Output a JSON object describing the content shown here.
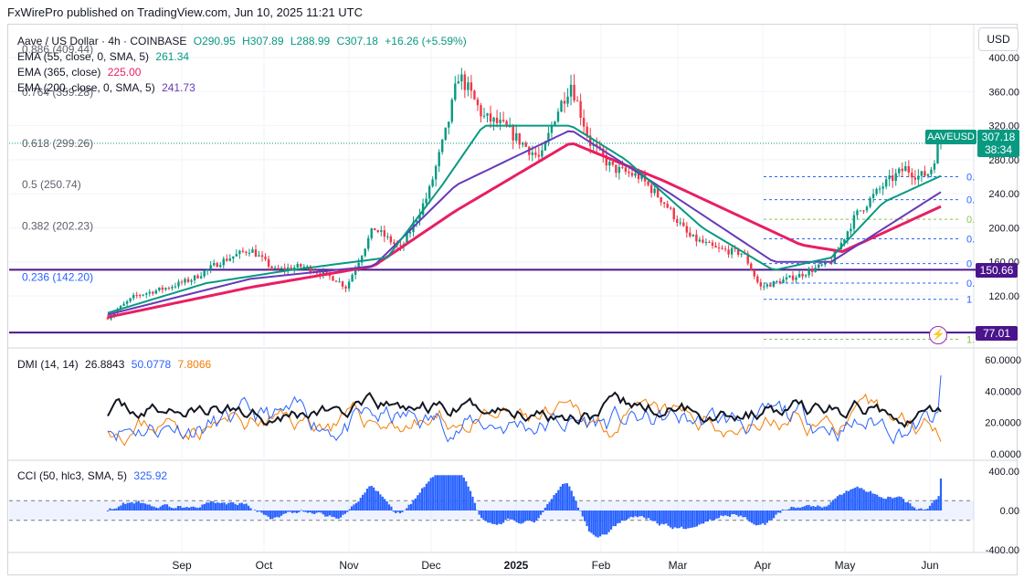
{
  "publisher": "FxWirePro published on TradingView.com, Jun 10, 2025 11:21 UTC",
  "currency_button": "USD",
  "symbol": {
    "name": "Aave / US Dollar · 4h · COINBASE",
    "open": "O290.95",
    "high": "H307.89",
    "low": "L288.99",
    "close": "C307.18",
    "change": "+16.26 (+5.59%)"
  },
  "indicators": {
    "ema55": {
      "label": "EMA (55, close, 0, SMA, 5)",
      "value": "261.34",
      "color": "#089981"
    },
    "ema365": {
      "label": "EMA (365, close)",
      "value": "225.00",
      "color": "#e91e63"
    },
    "ema200": {
      "label": "EMA (200, close, 0, SMA, 5)",
      "value": "241.73",
      "color": "#673ab7"
    },
    "dmi": {
      "label": "DMI (14, 14)",
      "adx": "26.8843",
      "plus": "50.0778",
      "minus": "7.8066"
    },
    "cci": {
      "label": "CCI (50, hlc3, SMA, 5)",
      "value": "325.92"
    }
  },
  "badges": {
    "symbol_tag": "AAVEUSD",
    "last_price": "307.18",
    "countdown": "38:34",
    "support_1": "150.66",
    "support_2": "77.01"
  },
  "fib_left": [
    {
      "label": "0.886 (409.44)",
      "value": 409.44
    },
    {
      "label": "0.764 (359.28)",
      "value": 359.28
    },
    {
      "label": "0.618 (299.26)",
      "value": 299.26
    },
    {
      "label": "0.5 (250.74)",
      "value": 250.74
    },
    {
      "label": "0.382 (202.23)",
      "value": 202.23
    },
    {
      "label": "0.236 (142.20)",
      "value": 142.2
    }
  ],
  "fib_right": [
    {
      "label": "0.",
      "value": 260
    },
    {
      "label": "0.",
      "value": 233
    },
    {
      "label": "0.",
      "value": 210
    },
    {
      "label": "0.",
      "value": 187
    },
    {
      "label": "0",
      "value": 158
    },
    {
      "label": "0.",
      "value": 135
    },
    {
      "label": "1",
      "value": 116
    },
    {
      "label": "1.",
      "value": 69
    }
  ],
  "colors": {
    "up": "#089981",
    "down": "#f23645",
    "ema55": "#089981",
    "ema200": "#673ab7",
    "ema365": "#e91e63",
    "hline": "#4a148c",
    "adx": "#131722",
    "plus_di": "#2962ff",
    "minus_di": "#f57c00",
    "cci": "#2962ff"
  },
  "chart_data": [
    {
      "type": "candlestick",
      "title": "Aave / US Dollar · 4h · COINBASE",
      "x_labels": [
        "Sep",
        "Oct",
        "Nov",
        "Dec",
        "2025",
        "Feb",
        "Mar",
        "Apr",
        "May",
        "Jun"
      ],
      "y_ticks": [
        120,
        160,
        200,
        240,
        280,
        320,
        360,
        400
      ],
      "y_tick_labels": [
        "120.00",
        "160.00",
        "200.00",
        "240.00",
        "280.00",
        "320.00",
        "360.00",
        "400.00"
      ],
      "ylim": [
        60,
        420
      ],
      "price_path": [
        [
          "Aug 10",
          95
        ],
        [
          "Aug 20",
          120
        ],
        [
          "Sep 1",
          130
        ],
        [
          "Sep 10",
          140
        ],
        [
          "Sep 20",
          160
        ],
        [
          "Oct 1",
          175
        ],
        [
          "Oct 10",
          150
        ],
        [
          "Oct 20",
          155
        ],
        [
          "Nov 1",
          140
        ],
        [
          "Nov 5",
          130
        ],
        [
          "Nov 15",
          200
        ],
        [
          "Nov 25",
          175
        ],
        [
          "Dec 5",
          240
        ],
        [
          "Dec 12",
          320
        ],
        [
          "Dec 16",
          380
        ],
        [
          "Dec 20",
          360
        ],
        [
          "Dec 25",
          330
        ],
        [
          "Jan 1",
          320
        ],
        [
          "Jan 8",
          300
        ],
        [
          "Jan 15",
          280
        ],
        [
          "Jan 20",
          330
        ],
        [
          "Jan 26",
          370
        ],
        [
          "Feb 2",
          300
        ],
        [
          "Feb 10",
          270
        ],
        [
          "Feb 20",
          260
        ],
        [
          "Mar 1",
          230
        ],
        [
          "Mar 10",
          190
        ],
        [
          "Mar 20",
          175
        ],
        [
          "Mar 30",
          170
        ],
        [
          "Apr 5",
          130
        ],
        [
          "Apr 10",
          135
        ],
        [
          "Apr 20",
          145
        ],
        [
          "May 1",
          160
        ],
        [
          "May 10",
          215
        ],
        [
          "May 20",
          250
        ],
        [
          "May 28",
          270
        ],
        [
          "Jun 2",
          260
        ],
        [
          "Jun 6",
          265
        ],
        [
          "Jun 10",
          307
        ]
      ],
      "ema55_path": [
        [
          "Aug 10",
          100
        ],
        [
          "Sep 15",
          135
        ],
        [
          "Oct 15",
          150
        ],
        [
          "Nov 20",
          165
        ],
        [
          "Dec 10",
          250
        ],
        [
          "Dec 25",
          320
        ],
        [
          "Jan 26",
          320
        ],
        [
          "Feb 15",
          280
        ],
        [
          "Mar 15",
          200
        ],
        [
          "Apr 10",
          150
        ],
        [
          "May 1",
          165
        ],
        [
          "May 20",
          230
        ],
        [
          "Jun 10",
          261
        ]
      ],
      "ema200_path": [
        [
          "Aug 10",
          98
        ],
        [
          "Oct 1",
          140
        ],
        [
          "Nov 15",
          155
        ],
        [
          "Dec 15",
          250
        ],
        [
          "Jan 26",
          315
        ],
        [
          "Mar 1",
          245
        ],
        [
          "Apr 10",
          160
        ],
        [
          "May 1",
          160
        ],
        [
          "Jun 10",
          242
        ]
      ],
      "ema365_path": [
        [
          "Aug 10",
          95
        ],
        [
          "Oct 1",
          130
        ],
        [
          "Nov 15",
          155
        ],
        [
          "Dec 15",
          220
        ],
        [
          "Jan 26",
          300
        ],
        [
          "Mar 1",
          255
        ],
        [
          "Apr 20",
          180
        ],
        [
          "May 5",
          172
        ],
        [
          "Jun 10",
          225
        ]
      ],
      "horizontal_levels": [
        150.66,
        77.01
      ]
    },
    {
      "type": "line",
      "title": "DMI (14, 14)",
      "y_ticks": [
        0,
        20,
        40,
        60
      ],
      "y_tick_labels": [
        "0.0000",
        "20.0000",
        "40.0000",
        "60.0000"
      ],
      "ylim": [
        0,
        60
      ],
      "series": [
        {
          "name": "ADX",
          "last": 26.8843
        },
        {
          "name": "+DI",
          "last": 50.0778
        },
        {
          "name": "-DI",
          "last": 7.8066
        }
      ]
    },
    {
      "type": "area",
      "title": "CCI (50, hlc3, SMA, 5)",
      "y_ticks": [
        -400,
        0,
        400
      ],
      "y_tick_labels": [
        "-400.00",
        "0.00",
        "400.00"
      ],
      "ylim": [
        -400,
        400
      ],
      "bands": [
        100,
        -100
      ],
      "series": [
        {
          "name": "CCI",
          "last": 325.92
        }
      ]
    }
  ]
}
